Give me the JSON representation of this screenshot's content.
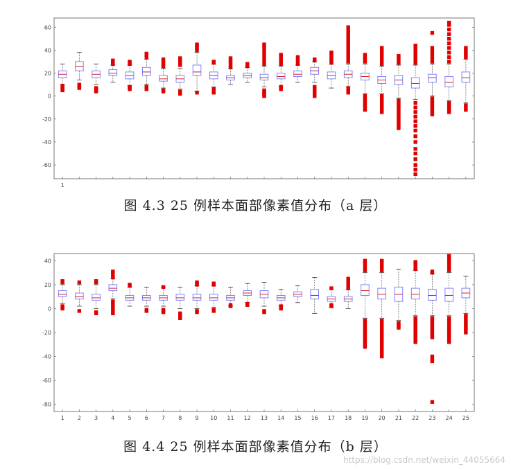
{
  "figures": [
    {
      "caption": "图 4.3  25 例样本面部像素值分布（a 层）",
      "chart_data": {
        "type": "box",
        "x": [
          1,
          2,
          3,
          4,
          5,
          6,
          7,
          8,
          9,
          10,
          11,
          12,
          13,
          14,
          15,
          16,
          17,
          18,
          19,
          20,
          21,
          22,
          23,
          24,
          25
        ],
        "x_tick_labels": [
          "1"
        ],
        "ylim": [
          -72,
          68
        ],
        "yticks": [
          -60,
          -40,
          -20,
          0,
          20,
          40,
          60
        ],
        "box_color": "#8080ff",
        "outlier_color": "#e00000",
        "boxes": [
          {
            "q1": 16,
            "median": 19,
            "q3": 22,
            "wl": 10,
            "wh": 28,
            "outliers": [
              5,
              6,
              7,
              8,
              9
            ]
          },
          {
            "q1": 22,
            "median": 26,
            "q3": 30,
            "wl": 14,
            "wh": 38,
            "outliers": [
              7,
              8,
              9,
              10
            ]
          },
          {
            "q1": 16,
            "median": 19,
            "q3": 22,
            "wl": 10,
            "wh": 28,
            "outliers": [
              4,
              5,
              6,
              7
            ]
          },
          {
            "q1": 18,
            "median": 20,
            "q3": 23,
            "wl": 12,
            "wh": 27,
            "outliers": [
              28,
              29,
              30,
              31
            ]
          },
          {
            "q1": 15,
            "median": 18,
            "q3": 21,
            "wl": 9,
            "wh": 27,
            "outliers": [
              6,
              7,
              8,
              28,
              29,
              30
            ]
          },
          {
            "q1": 18,
            "median": 21,
            "q3": 25,
            "wl": 10,
            "wh": 32,
            "outliers": [
              6,
              7,
              8,
              34,
              35,
              36,
              37
            ]
          },
          {
            "q1": 13,
            "median": 15,
            "q3": 18,
            "wl": 7,
            "wh": 24,
            "outliers": [
              4,
              5,
              26,
              28,
              30,
              32
            ]
          },
          {
            "q1": 12,
            "median": 15,
            "q3": 18,
            "wl": 6,
            "wh": 24,
            "outliers": [
              2,
              3,
              4,
              27,
              29,
              31,
              33
            ]
          },
          {
            "q1": 18,
            "median": 21,
            "q3": 27,
            "wl": 4,
            "wh": 38,
            "outliers": [
              3,
              40,
              42,
              44,
              45
            ]
          },
          {
            "q1": 15,
            "median": 18,
            "q3": 21,
            "wl": 8,
            "wh": 28,
            "outliers": [
              3,
              4,
              5,
              6,
              29,
              30
            ]
          },
          {
            "q1": 14,
            "median": 16,
            "q3": 18,
            "wl": 10,
            "wh": 24,
            "outliers": [
              25,
              27,
              29,
              31,
              33
            ]
          },
          {
            "q1": 16,
            "median": 18,
            "q3": 20,
            "wl": 12,
            "wh": 25,
            "outliers": [
              26,
              27,
              28
            ]
          },
          {
            "q1": 14,
            "median": 16,
            "q3": 19,
            "wl": 8,
            "wh": 26,
            "outliers": [
              0,
              1,
              2,
              3,
              4,
              5,
              28,
              31,
              34,
              37,
              40,
              43,
              45
            ]
          },
          {
            "q1": 15,
            "median": 17,
            "q3": 20,
            "wl": 8,
            "wh": 26,
            "outliers": [
              6,
              7,
              8,
              28,
              30,
              32,
              34,
              36
            ]
          },
          {
            "q1": 17,
            "median": 19,
            "q3": 22,
            "wl": 12,
            "wh": 27,
            "outliers": [
              28,
              30,
              32,
              34
            ]
          },
          {
            "q1": 19,
            "median": 22,
            "q3": 25,
            "wl": 12,
            "wh": 30,
            "outliers": [
              0,
              1,
              2,
              3,
              4,
              5,
              6,
              7,
              8,
              31,
              32
            ]
          },
          {
            "q1": 15,
            "median": 18,
            "q3": 21,
            "wl": 7,
            "wh": 28,
            "outliers": [
              29,
              31,
              33,
              35,
              37,
              38
            ]
          },
          {
            "q1": 16,
            "median": 19,
            "q3": 22,
            "wl": 8,
            "wh": 28,
            "outliers": [
              3,
              4,
              5,
              6,
              7,
              30,
              33,
              36,
              39,
              42,
              45,
              48,
              51,
              54,
              57,
              60
            ]
          },
          {
            "q1": 14,
            "median": 17,
            "q3": 20,
            "wl": 2,
            "wh": 28,
            "outliers": [
              -12,
              -10,
              -8,
              -6,
              -4,
              -2,
              0,
              30,
              32,
              34,
              36
            ]
          },
          {
            "q1": 11,
            "median": 14,
            "q3": 17,
            "wl": 2,
            "wh": 26,
            "outliers": [
              -14,
              -12,
              -10,
              -8,
              -6,
              -4,
              -2,
              0,
              28,
              31,
              34,
              37,
              40,
              42
            ]
          },
          {
            "q1": 10,
            "median": 14,
            "q3": 18,
            "wl": -2,
            "wh": 27,
            "outliers": [
              -28,
              -26,
              -24,
              -22,
              -20,
              -18,
              -16,
              -14,
              -12,
              -10,
              -8,
              -6,
              -4,
              29,
              31,
              33,
              35
            ]
          },
          {
            "q1": 7,
            "median": 11,
            "q3": 16,
            "wl": -3,
            "wh": 27,
            "outliers": [
              -68,
              -64,
              -60,
              -55,
              -50,
              -46,
              -40,
              -35,
              -30,
              -26,
              -22,
              -18,
              -14,
              -10,
              -6,
              29,
              32,
              35,
              38,
              41,
              44
            ]
          },
          {
            "q1": 12,
            "median": 16,
            "q3": 19,
            "wl": 0,
            "wh": 28,
            "outliers": [
              -16,
              -14,
              -12,
              -10,
              -8,
              -6,
              -4,
              -2,
              30,
              33,
              36,
              39,
              42,
              55
            ]
          },
          {
            "q1": 8,
            "median": 12,
            "q3": 17,
            "wl": -4,
            "wh": 28,
            "outliers": [
              -14,
              -12,
              -10,
              -8,
              -6,
              30,
              34,
              38,
              42,
              46,
              50,
              54,
              58,
              62,
              64
            ]
          },
          {
            "q1": 12,
            "median": 16,
            "q3": 21,
            "wl": -6,
            "wh": 32,
            "outliers": [
              -12,
              -10,
              -8,
              34,
              36,
              38,
              40,
              42
            ]
          }
        ]
      }
    },
    {
      "caption": "图 4.4  25 例样本面部像素值分布（b 层）",
      "chart_data": {
        "type": "box",
        "x": [
          1,
          2,
          3,
          4,
          5,
          6,
          7,
          8,
          9,
          10,
          11,
          12,
          13,
          14,
          15,
          16,
          17,
          18,
          19,
          20,
          21,
          22,
          23,
          24,
          25
        ],
        "x_tick_labels": [
          "1",
          "2",
          "3",
          "4",
          "5",
          "6",
          "7",
          "8",
          "9",
          "10",
          "11",
          "12",
          "13",
          "14",
          "15",
          "16",
          "17",
          "18",
          "19",
          "20",
          "21",
          "22",
          "23",
          "24",
          "25"
        ],
        "ylim": [
          -86,
          46
        ],
        "yticks": [
          -80,
          -60,
          -40,
          -20,
          0,
          20,
          40
        ],
        "box_color": "#8080ff",
        "outlier_color": "#e00000",
        "boxes": [
          {
            "q1": 10,
            "median": 12,
            "q3": 15,
            "wl": 4,
            "wh": 20,
            "outliers": [
              0,
              1,
              2,
              22,
              23
            ]
          },
          {
            "q1": 8,
            "median": 10,
            "q3": 13,
            "wl": 2,
            "wh": 20,
            "outliers": [
              -2,
              22
            ]
          },
          {
            "q1": 7,
            "median": 9,
            "q3": 12,
            "wl": 0,
            "wh": 20,
            "outliers": [
              -4,
              -3,
              22,
              23
            ]
          },
          {
            "q1": 15,
            "median": 17,
            "q3": 20,
            "wl": 8,
            "wh": 25,
            "outliers": [
              -4,
              -2,
              0,
              2,
              4,
              6,
              26,
              28,
              30,
              31
            ]
          },
          {
            "q1": 7,
            "median": 9,
            "q3": 11,
            "wl": 2,
            "wh": 18,
            "outliers": [
              19,
              20
            ]
          },
          {
            "q1": 7,
            "median": 9,
            "q3": 11,
            "wl": 2,
            "wh": 18,
            "outliers": [
              -2,
              -1
            ]
          },
          {
            "q1": 7,
            "median": 9,
            "q3": 11,
            "wl": 2,
            "wh": 18,
            "outliers": [
              -3,
              -2,
              -1,
              18
            ]
          },
          {
            "q1": 7,
            "median": 9,
            "q3": 12,
            "wl": 0,
            "wh": 18,
            "outliers": [
              -8,
              -6,
              -4
            ]
          },
          {
            "q1": 7,
            "median": 9,
            "q3": 12,
            "wl": 0,
            "wh": 19,
            "outliers": [
              -3,
              -2,
              20,
              21,
              22
            ]
          },
          {
            "q1": 7,
            "median": 9,
            "q3": 12,
            "wl": 1,
            "wh": 19,
            "outliers": [
              -2,
              -1,
              20,
              21
            ]
          },
          {
            "q1": 7,
            "median": 9,
            "q3": 11,
            "wl": 2,
            "wh": 18,
            "outliers": [
              2,
              3
            ]
          },
          {
            "q1": 11,
            "median": 13,
            "q3": 15,
            "wl": 5,
            "wh": 21,
            "outliers": [
              3,
              4
            ]
          },
          {
            "q1": 9,
            "median": 12,
            "q3": 15,
            "wl": 2,
            "wh": 22,
            "outliers": [
              -3,
              -2
            ]
          },
          {
            "q1": 7,
            "median": 9,
            "q3": 11,
            "wl": 2,
            "wh": 16,
            "outliers": [
              0,
              1,
              2
            ]
          },
          {
            "q1": 10,
            "median": 12,
            "q3": 14,
            "wl": 5,
            "wh": 19,
            "outliers": []
          },
          {
            "q1": 8,
            "median": 11,
            "q3": 16,
            "wl": -4,
            "wh": 26,
            "outliers": []
          },
          {
            "q1": 6,
            "median": 8,
            "q3": 10,
            "wl": 1,
            "wh": 16,
            "outliers": [
              2,
              3,
              17
            ]
          },
          {
            "q1": 6,
            "median": 8,
            "q3": 10,
            "wl": 0,
            "wh": 16,
            "outliers": [
              17,
              19,
              21,
              23,
              25
            ]
          },
          {
            "q1": 11,
            "median": 15,
            "q3": 20,
            "wl": -8,
            "wh": 30,
            "outliers": [
              -32,
              -30,
              -28,
              -26,
              -24,
              -22,
              -20,
              -18,
              -16,
              -14,
              -12,
              -10,
              32,
              34,
              36,
              38,
              40
            ]
          },
          {
            "q1": 8,
            "median": 12,
            "q3": 17,
            "wl": -8,
            "wh": 30,
            "outliers": [
              -40,
              -38,
              -36,
              -34,
              -32,
              -30,
              -28,
              -26,
              -24,
              -22,
              -20,
              -18,
              -16,
              -14,
              -12,
              -10,
              32,
              35,
              38,
              40
            ]
          },
          {
            "q1": 6,
            "median": 12,
            "q3": 18,
            "wl": -10,
            "wh": 33,
            "outliers": [
              -16,
              -15,
              -14,
              -13,
              -12
            ]
          },
          {
            "q1": 8,
            "median": 12,
            "q3": 17,
            "wl": -6,
            "wh": 32,
            "outliers": [
              -28,
              -26,
              -24,
              -22,
              -20,
              -18,
              -16,
              -14,
              -12,
              -10,
              -8,
              33,
              35,
              37,
              38,
              39
            ]
          },
          {
            "q1": 7,
            "median": 11,
            "q3": 16,
            "wl": -6,
            "wh": 29,
            "outliers": [
              -78,
              -44,
              -42,
              -40,
              -24,
              -22,
              -20,
              -18,
              -16,
              -14,
              -12,
              -10,
              -8,
              30,
              31
            ]
          },
          {
            "q1": 6,
            "median": 11,
            "q3": 17,
            "wl": -6,
            "wh": 30,
            "outliers": [
              -28,
              -26,
              -24,
              -22,
              -20,
              -18,
              -16,
              -14,
              -12,
              -10,
              -8,
              32,
              34,
              36,
              38,
              40,
              42,
              44
            ]
          },
          {
            "q1": 9,
            "median": 13,
            "q3": 17,
            "wl": -4,
            "wh": 27,
            "outliers": [
              -20,
              -18,
              -16,
              -14,
              -12,
              -10,
              -8,
              -6
            ]
          }
        ]
      }
    }
  ],
  "watermark": "https://blog.csdn.net/weixin_44055664"
}
